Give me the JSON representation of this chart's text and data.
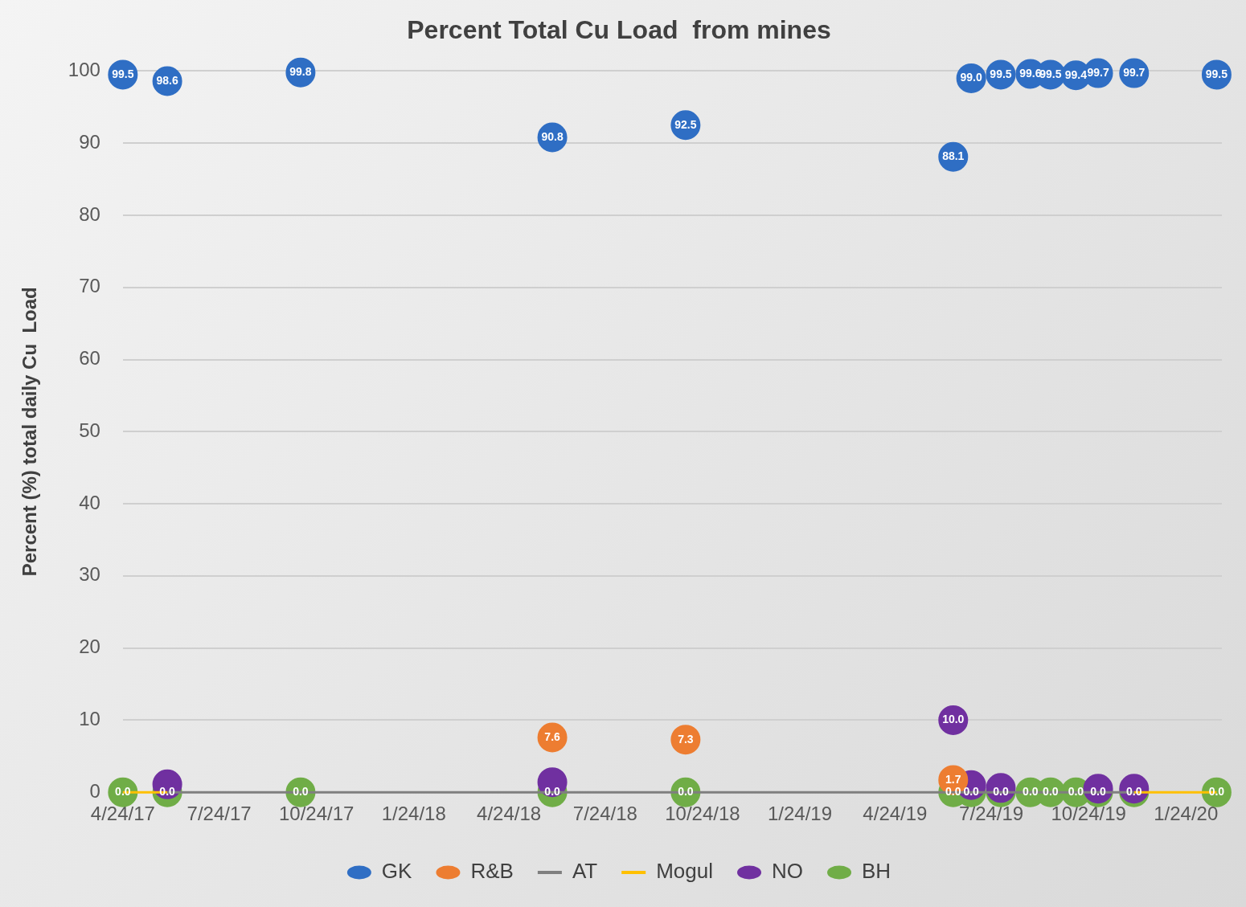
{
  "chart_data": {
    "type": "scatter",
    "title": "Percent Total Cu Load  from mines",
    "ylabel": "Percent (%) total daily Cu  Load",
    "x": [
      "2017-04-24",
      "2017-06-05",
      "2017-10-09",
      "2018-06-04",
      "2018-10-08",
      "2019-06-18",
      "2019-07-05",
      "2019-08-02",
      "2019-08-30",
      "2019-09-18",
      "2019-10-12",
      "2019-11-02",
      "2019-12-06",
      "2020-02-22"
    ],
    "series": [
      {
        "name": "GK",
        "type": "scatter",
        "color": "#2f6ec4",
        "values": [
          99.5,
          98.6,
          99.8,
          90.8,
          92.5,
          88.1,
          99.0,
          99.5,
          99.6,
          99.5,
          99.4,
          99.7,
          99.7,
          99.5
        ],
        "value_labels": [
          "99.5",
          "98.6",
          "99.8",
          "90.8",
          "92.5",
          "88.1",
          "99.0",
          "99.5",
          "99.6",
          "99.5",
          "99.4",
          "99.7",
          "99.7",
          "99.5"
        ]
      },
      {
        "name": "R&B",
        "type": "scatter",
        "color": "#ed7d31",
        "values": [
          null,
          null,
          null,
          7.6,
          7.3,
          1.7,
          null,
          null,
          null,
          null,
          null,
          null,
          null,
          null
        ],
        "value_labels": [
          null,
          null,
          null,
          "7.6",
          "7.3",
          "1.7",
          null,
          null,
          null,
          null,
          null,
          null,
          null,
          null
        ]
      },
      {
        "name": "AT",
        "type": "line",
        "marker": "none",
        "color": "#7f7f7f",
        "values": [
          null,
          0.0,
          0.0,
          0.0,
          0.0,
          0.0,
          0.0,
          0.0,
          0.0,
          0.0,
          0.0,
          0.0,
          0.0,
          null
        ]
      },
      {
        "name": "Mogul",
        "type": "line",
        "marker": "none",
        "color": "#ffc000",
        "values": [
          0.0,
          0.0,
          null,
          null,
          null,
          null,
          null,
          null,
          null,
          null,
          null,
          null,
          0.0,
          0.0
        ]
      },
      {
        "name": "NO",
        "type": "scatter",
        "color": "#7030a0",
        "values": [
          null,
          1.1,
          null,
          1.4,
          null,
          10.0,
          1.0,
          0.6,
          null,
          null,
          null,
          0.5,
          0.5,
          null
        ],
        "value_labels": [
          null,
          null,
          null,
          null,
          null,
          "10.0",
          null,
          null,
          null,
          null,
          null,
          null,
          null,
          null
        ]
      },
      {
        "name": "BH",
        "type": "scatter",
        "color": "#70ad47",
        "values": [
          0.0,
          0.0,
          0.0,
          0.0,
          0.0,
          0.0,
          0.0,
          0.0,
          0.0,
          0.0,
          0.0,
          0.0,
          0.0,
          0.0
        ],
        "value_labels": [
          "0.0",
          "0.0",
          "0.0",
          "0.0",
          "0.0",
          "0.0",
          "0.0",
          "0.0",
          "0.0",
          "0.0",
          "0.0",
          "0.0",
          "0.0",
          "0.0"
        ]
      }
    ],
    "xlim": [
      "2017-04-24",
      "2020-02-27"
    ],
    "xticks": [
      {
        "value": "2017-04-24",
        "label": "4/24/17"
      },
      {
        "value": "2017-07-24",
        "label": "7/24/17"
      },
      {
        "value": "2017-10-24",
        "label": "10/24/17"
      },
      {
        "value": "2018-01-24",
        "label": "1/24/18"
      },
      {
        "value": "2018-04-24",
        "label": "4/24/18"
      },
      {
        "value": "2018-07-24",
        "label": "7/24/18"
      },
      {
        "value": "2018-10-24",
        "label": "10/24/18"
      },
      {
        "value": "2019-01-24",
        "label": "1/24/19"
      },
      {
        "value": "2019-04-24",
        "label": "4/24/19"
      },
      {
        "value": "2019-07-24",
        "label": "7/24/19"
      },
      {
        "value": "2019-10-24",
        "label": "10/24/19"
      },
      {
        "value": "2020-01-24",
        "label": "1/24/20"
      }
    ],
    "ylim": [
      0,
      100
    ],
    "yticks": [
      0,
      10,
      20,
      30,
      40,
      50,
      60,
      70,
      80,
      90,
      100
    ],
    "grid": "y",
    "legend": "bottom",
    "marker": "circle"
  }
}
